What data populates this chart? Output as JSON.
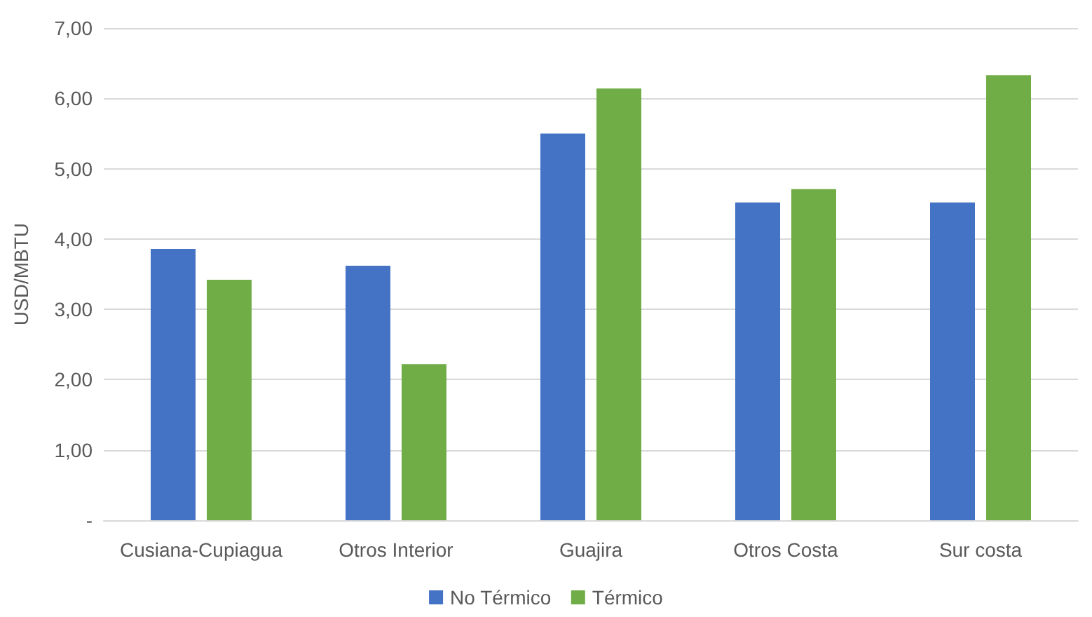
{
  "chart_data": {
    "type": "bar",
    "ylabel": "USD/MBTU",
    "categories": [
      "Cusiana-Cupiagua",
      "Otros Interior",
      "Guajira",
      "Otros Costa",
      "Sur costa"
    ],
    "series": [
      {
        "name": "No Térmico",
        "color": "#4472c4",
        "values": [
          3.86,
          3.62,
          5.5,
          4.52,
          4.52
        ]
      },
      {
        "name": "Térmico",
        "color": "#70ad47",
        "values": [
          3.42,
          2.22,
          6.14,
          4.71,
          6.33
        ]
      }
    ],
    "ylim": [
      0,
      7
    ],
    "yticks": [
      {
        "value": 0,
        "label": "-"
      },
      {
        "value": 1,
        "label": "1,00"
      },
      {
        "value": 2,
        "label": "2,00"
      },
      {
        "value": 3,
        "label": "3,00"
      },
      {
        "value": 4,
        "label": "4,00"
      },
      {
        "value": 5,
        "label": "5,00"
      },
      {
        "value": 6,
        "label": "6,00"
      },
      {
        "value": 7,
        "label": "7,00"
      }
    ],
    "grid": "y",
    "legend": "bottom"
  }
}
